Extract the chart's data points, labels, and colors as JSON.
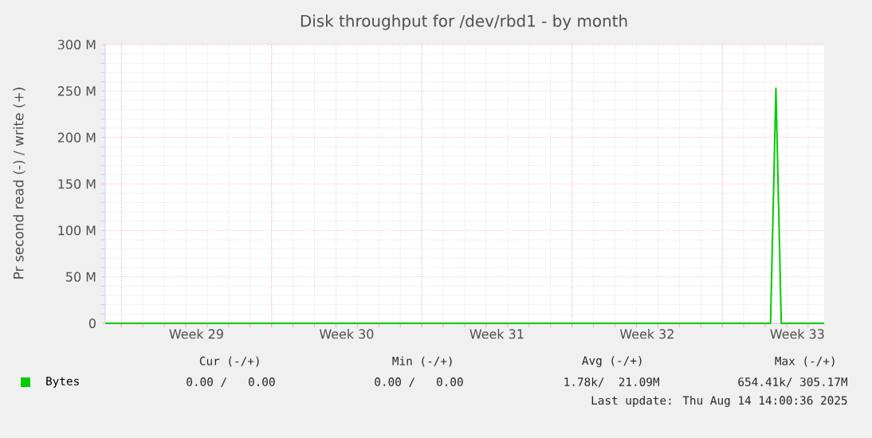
{
  "chart_data": {
    "type": "line",
    "title": "Disk throughput for /dev/rbd1 - by month",
    "ylabel": "Pr second read (-) / write (+)",
    "categories": [
      null,
      null,
      null,
      null,
      null,
      null,
      null,
      null,
      null,
      null,
      null,
      null,
      null,
      null,
      null,
      null,
      null,
      "Week 29",
      null,
      null,
      null,
      null,
      null,
      null,
      null,
      null,
      null,
      null,
      null,
      null,
      null,
      null,
      null,
      null,
      null,
      null,
      null,
      null,
      null,
      null,
      null,
      null,
      null,
      null,
      null,
      "Week 30",
      null,
      null,
      null,
      null,
      null,
      null,
      null,
      null,
      null,
      null,
      null,
      null,
      null,
      null,
      null,
      null,
      null,
      null,
      null,
      null,
      null,
      null,
      null,
      null,
      null,
      null,
      null,
      "Week 31",
      null,
      null,
      null,
      null,
      null,
      null,
      null,
      null,
      null,
      null,
      null,
      null,
      null,
      null,
      null,
      null,
      null,
      null,
      null,
      null,
      null,
      null,
      null,
      null,
      null,
      null,
      null,
      "Week 32",
      null,
      null,
      null,
      null,
      null,
      null,
      null,
      null,
      null,
      null,
      null,
      null,
      null,
      null,
      null,
      null,
      null,
      null,
      null,
      null,
      null,
      null,
      null,
      null,
      null,
      null,
      null,
      "Week 33",
      null,
      null,
      null,
      null,
      null
    ],
    "series": [
      {
        "name": "Bytes",
        "color": "#00cc00",
        "values": [
          0,
          0,
          0,
          0,
          0,
          0,
          0,
          0,
          0,
          0,
          0,
          0,
          0,
          0,
          0,
          0,
          0,
          0,
          0,
          0,
          0,
          0,
          0,
          0,
          0,
          0,
          0,
          0,
          0,
          0,
          0,
          0,
          0,
          0,
          0,
          0,
          0,
          0,
          0,
          0,
          0,
          0,
          0,
          0,
          0,
          0,
          0,
          0,
          0,
          0,
          0,
          0,
          0,
          0,
          0,
          0,
          0,
          0,
          0,
          0,
          0,
          0,
          0,
          0,
          0,
          0,
          0,
          0,
          0,
          0,
          0,
          0,
          0,
          0,
          0,
          0,
          0,
          0,
          0,
          0,
          0,
          0,
          0,
          0,
          0,
          0,
          0,
          0,
          0,
          0,
          0,
          0,
          0,
          0,
          0,
          0,
          0,
          0,
          0,
          0,
          0,
          0,
          0,
          0,
          0,
          0,
          0,
          0,
          0,
          0,
          0,
          0,
          0,
          0,
          0,
          0,
          0,
          0,
          0,
          0,
          0,
          0,
          0,
          0,
          0,
          253,
          0,
          0,
          0,
          0,
          0,
          0,
          0,
          0,
          0
        ]
      }
    ],
    "ylim": [
      0,
      300
    ],
    "yticks": [
      {
        "value": 0,
        "label": "0"
      },
      {
        "value": 50,
        "label": "50 M"
      },
      {
        "value": 100,
        "label": "100 M"
      },
      {
        "value": 150,
        "label": "150 M"
      },
      {
        "value": 200,
        "label": "200 M"
      },
      {
        "value": 250,
        "label": "250 M"
      },
      {
        "value": 300,
        "label": "300 M"
      }
    ],
    "grid": true,
    "legend": "bottom",
    "line_style": "solid",
    "marker": "none",
    "annotations": [
      "Cur (-/+)",
      "Min (-/+)",
      "Avg (-/+)",
      "Max (-/+)",
      "0.00 /   0.00",
      "0.00 /   0.00",
      "1.78k/  21.09M",
      "654.41k/ 305.17M",
      "Last update: Thu Aug 14 14:00:36 2025"
    ]
  }
}
